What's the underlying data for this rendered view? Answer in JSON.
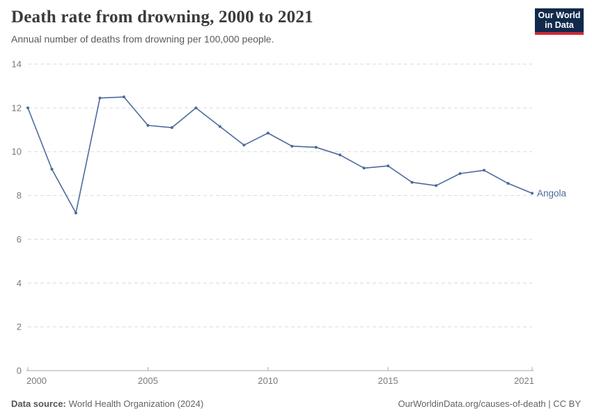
{
  "header": {
    "title": "Death rate from drowning, 2000 to 2021",
    "subtitle": "Annual number of deaths from drowning per 100,000 people.",
    "logo_line1": "Our World",
    "logo_line2": "in Data"
  },
  "chart_data": {
    "type": "line",
    "title": "Death rate from drowning, 2000 to 2021",
    "subtitle": "Annual number of deaths from drowning per 100,000 people.",
    "x": [
      2000,
      2001,
      2002,
      2003,
      2004,
      2005,
      2006,
      2007,
      2008,
      2009,
      2010,
      2011,
      2012,
      2013,
      2014,
      2015,
      2016,
      2017,
      2018,
      2019,
      2020,
      2021
    ],
    "series": [
      {
        "name": "Angola",
        "color": "#4C6A9C",
        "values": [
          12.0,
          9.2,
          7.2,
          12.45,
          12.5,
          11.2,
          11.1,
          12.0,
          11.15,
          10.3,
          10.85,
          10.25,
          10.2,
          9.85,
          9.25,
          9.35,
          8.6,
          8.45,
          9.0,
          9.15,
          8.55,
          8.1
        ]
      }
    ],
    "xlabel": "",
    "ylabel": "",
    "ylim": [
      0,
      14
    ],
    "xlim": [
      2000,
      2021
    ],
    "yticks": [
      0,
      2,
      4,
      6,
      8,
      10,
      12,
      14
    ],
    "xticks": [
      2000,
      2005,
      2010,
      2015,
      2021
    ],
    "grid": "horizontal-dashed",
    "legend_position": "line-end-label"
  },
  "footer": {
    "source_label": "Data source:",
    "source_text": "World Health Organization (2024)",
    "attribution": "OurWorldinData.org/causes-of-death | CC BY"
  },
  "colors": {
    "line": "#4C6A9C",
    "grid": "#d9d9d9",
    "axis": "#a8a8a8",
    "tick_label": "#7a7a7a",
    "title": "#3b3b3b",
    "subtitle": "#5a5a5a",
    "footer": "#636363",
    "logo_bg": "#11294b",
    "logo_accent": "#cc2b36",
    "logo_text": "#ffffff"
  }
}
